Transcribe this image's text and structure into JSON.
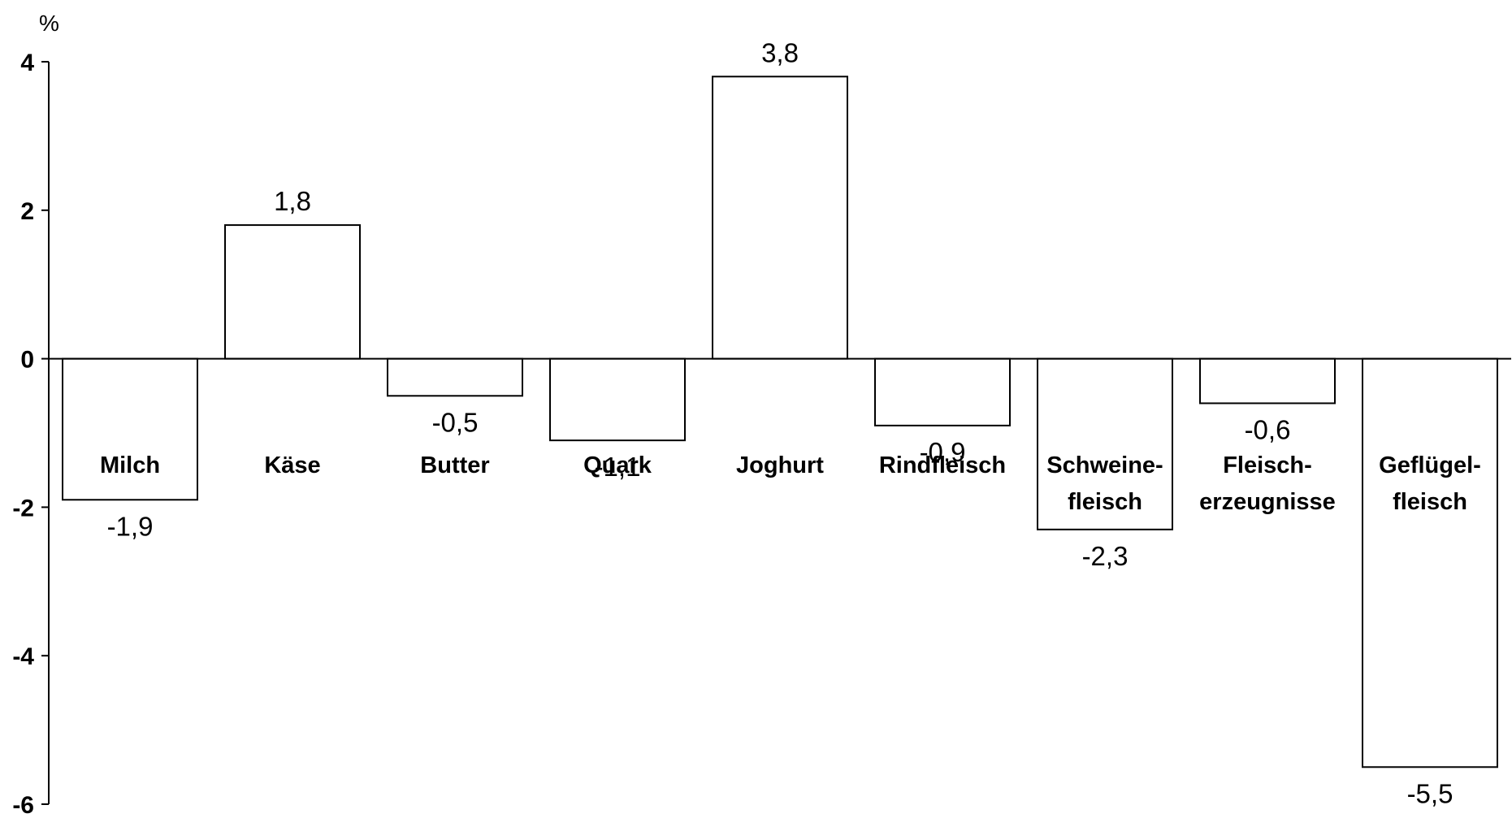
{
  "chart_data": {
    "type": "bar",
    "title": "",
    "xlabel": "",
    "ylabel": "%",
    "ylim": [
      -6,
      4
    ],
    "yticks": [
      4,
      2,
      0,
      -2,
      -4,
      -6
    ],
    "grid": false,
    "categories": [
      [
        "Milch"
      ],
      [
        "Käse"
      ],
      [
        "Butter"
      ],
      [
        "Quark"
      ],
      [
        "Joghurt"
      ],
      [
        "Rindfleisch"
      ],
      [
        "Schweine-",
        "fleisch"
      ],
      [
        "Fleisch-",
        "erzeugnisse"
      ],
      [
        "Geflügel-",
        "fleisch"
      ]
    ],
    "values": [
      -1.9,
      1.8,
      -0.5,
      -1.1,
      3.8,
      -0.9,
      -2.3,
      -0.6,
      -5.5
    ],
    "value_labels": [
      "-1,9",
      "1,8",
      "-0,5",
      "-1,1",
      "3,8",
      "-0,9",
      "-2,3",
      "-0,6",
      "-5,5"
    ],
    "colors": {
      "bar_fill": "#ffffff",
      "bar_stroke": "#000000"
    }
  }
}
